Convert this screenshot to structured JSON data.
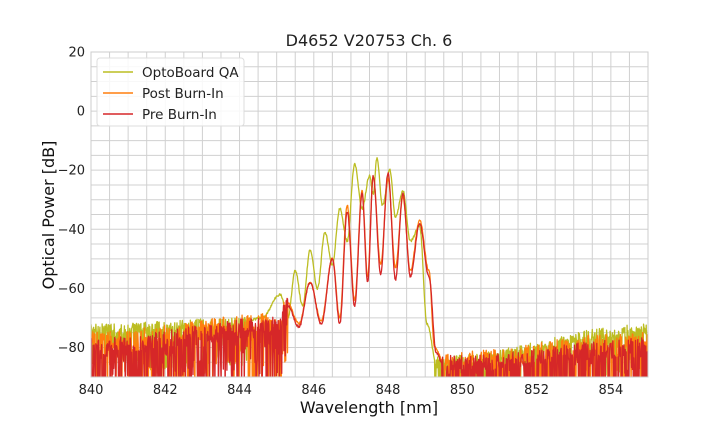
{
  "chart_data": {
    "type": "line",
    "title": "D4652 V20753 Ch. 6",
    "xlabel": "Wavelength [nm]",
    "ylabel": "Optical Power [dB]",
    "xlim": [
      840,
      855
    ],
    "ylim": [
      -90,
      20
    ],
    "xticks": [
      840,
      842,
      844,
      846,
      848,
      850,
      852,
      854
    ],
    "yticks": [
      20,
      0,
      -20,
      -40,
      -60,
      -80
    ],
    "xtick_labels": [
      "840",
      "842",
      "844",
      "846",
      "848",
      "850",
      "852",
      "854"
    ],
    "ytick_labels": [
      "20",
      "0",
      "−20",
      "−40",
      "−60",
      "−80"
    ],
    "minor_grid_step_x": 0.5,
    "minor_grid_step_y": 5,
    "grid": true,
    "legend_position": "top-left",
    "series": [
      {
        "name": "OptoBoard QA",
        "color": "#bcbd22",
        "noise_floor": -72,
        "noise_amplitude": 8,
        "peaks": [
          [
            845.1,
            -62
          ],
          [
            845.5,
            -54
          ],
          [
            845.9,
            -47
          ],
          [
            846.3,
            -41
          ],
          [
            846.7,
            -33
          ],
          [
            847.1,
            -18
          ],
          [
            847.5,
            -22
          ],
          [
            847.7,
            -16
          ],
          [
            848.05,
            -20
          ],
          [
            848.4,
            -27
          ],
          [
            848.85,
            -39
          ]
        ],
        "points": [
          [
            840,
            -74
          ],
          [
            844,
            -72
          ],
          [
            844.6,
            -70
          ],
          [
            845.1,
            -62
          ],
          [
            845.3,
            -70
          ],
          [
            845.5,
            -54
          ],
          [
            845.7,
            -66
          ],
          [
            845.9,
            -47
          ],
          [
            846.1,
            -60
          ],
          [
            846.3,
            -41
          ],
          [
            846.5,
            -52
          ],
          [
            846.7,
            -33
          ],
          [
            846.9,
            -44
          ],
          [
            847.1,
            -18
          ],
          [
            847.3,
            -33
          ],
          [
            847.5,
            -22
          ],
          [
            847.6,
            -28
          ],
          [
            847.7,
            -16
          ],
          [
            847.85,
            -32
          ],
          [
            848.05,
            -20
          ],
          [
            848.2,
            -36
          ],
          [
            848.4,
            -27
          ],
          [
            848.6,
            -44
          ],
          [
            848.85,
            -39
          ],
          [
            849.05,
            -72
          ],
          [
            849.3,
            -85
          ],
          [
            855,
            -74
          ]
        ]
      },
      {
        "name": "Post Burn-In",
        "color": "#ff7f0e",
        "noise_floor": -76,
        "noise_amplitude": 14,
        "peaks": [
          [
            845.3,
            -65
          ],
          [
            845.9,
            -58
          ],
          [
            846.5,
            -50
          ],
          [
            846.9,
            -32
          ],
          [
            847.3,
            -27
          ],
          [
            847.6,
            -22
          ],
          [
            848.0,
            -23
          ],
          [
            848.4,
            -29
          ],
          [
            848.85,
            -37
          ]
        ],
        "points": [
          [
            840,
            -78
          ],
          [
            845.0,
            -72
          ],
          [
            845.3,
            -65
          ],
          [
            845.6,
            -72
          ],
          [
            845.9,
            -58
          ],
          [
            846.2,
            -71
          ],
          [
            846.5,
            -50
          ],
          [
            846.7,
            -70
          ],
          [
            846.9,
            -32
          ],
          [
            847.1,
            -64
          ],
          [
            847.3,
            -27
          ],
          [
            847.45,
            -56
          ],
          [
            847.6,
            -22
          ],
          [
            847.8,
            -52
          ],
          [
            848.0,
            -23
          ],
          [
            848.2,
            -53
          ],
          [
            848.4,
            -29
          ],
          [
            848.6,
            -54
          ],
          [
            848.85,
            -37
          ],
          [
            849.1,
            -54
          ],
          [
            849.25,
            -80
          ],
          [
            849.5,
            -85
          ],
          [
            855,
            -78
          ]
        ]
      },
      {
        "name": "Pre Burn-In",
        "color": "#d62728",
        "noise_floor": -78,
        "noise_amplitude": 13,
        "peaks": [
          [
            845.3,
            -66
          ],
          [
            845.9,
            -58
          ],
          [
            846.5,
            -50
          ],
          [
            846.9,
            -34
          ],
          [
            847.3,
            -28
          ],
          [
            847.6,
            -22
          ],
          [
            848.0,
            -21
          ],
          [
            848.4,
            -28
          ],
          [
            848.85,
            -38
          ]
        ],
        "points": [
          [
            840,
            -80
          ],
          [
            845.0,
            -73
          ],
          [
            845.3,
            -66
          ],
          [
            845.6,
            -73
          ],
          [
            845.9,
            -58
          ],
          [
            846.2,
            -72
          ],
          [
            846.5,
            -50
          ],
          [
            846.7,
            -72
          ],
          [
            846.9,
            -34
          ],
          [
            847.1,
            -66
          ],
          [
            847.3,
            -28
          ],
          [
            847.45,
            -58
          ],
          [
            847.6,
            -22
          ],
          [
            847.8,
            -55
          ],
          [
            848.0,
            -21
          ],
          [
            848.2,
            -57
          ],
          [
            848.4,
            -28
          ],
          [
            848.6,
            -56
          ],
          [
            848.85,
            -38
          ],
          [
            849.1,
            -56
          ],
          [
            849.3,
            -82
          ],
          [
            849.5,
            -86
          ],
          [
            855,
            -80
          ]
        ]
      }
    ]
  }
}
